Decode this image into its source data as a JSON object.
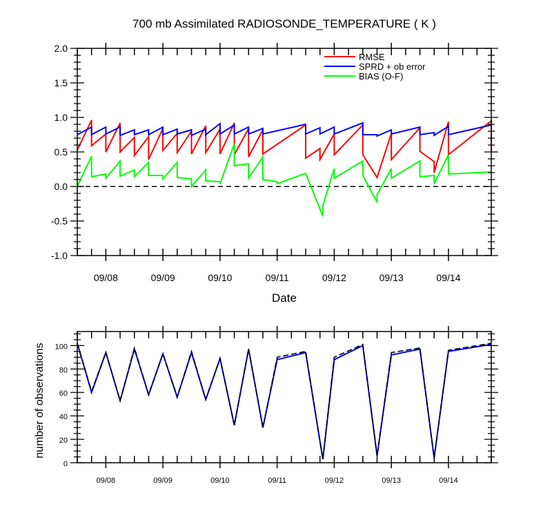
{
  "title": "700 mb Assimilated RADIOSONDE_TEMPERATURE ( K )",
  "colors": {
    "rmse": "#ff0000",
    "sprd": "#0000ff",
    "bias": "#00ff00",
    "axis": "#000000",
    "zero_line": "#000000"
  },
  "chart_data": [
    {
      "type": "line",
      "title": "700 mb Assimilated RADIOSONDE_TEMPERATURE ( K )",
      "xlabel": "Date",
      "ylabel": "",
      "xlim": [
        0.0,
        7.25
      ],
      "ylim": [
        -1.0,
        2.0
      ],
      "x_tick_labels": [
        "09/08",
        "09/09",
        "09/10",
        "09/11",
        "09/12",
        "09/13",
        "09/14"
      ],
      "x_tick_positions": [
        0.5,
        1.5,
        2.5,
        3.5,
        4.5,
        5.5,
        6.5
      ],
      "y_tick_labels": [
        "-1.0",
        "-0.5",
        "0.0",
        "0.5",
        "1.0",
        "1.5",
        "2.0"
      ],
      "y_ticks": [
        -1.0,
        -0.5,
        0.0,
        0.5,
        1.0,
        1.5,
        2.0
      ],
      "zero_line": true,
      "grid": false,
      "legend_position": "top-right",
      "series": [
        {
          "name": "RMSE",
          "color": "#ff0000",
          "points": [
            [
              0.0,
              0.53
            ],
            [
              0.25,
              0.96
            ],
            [
              0.25,
              0.59
            ],
            [
              0.5,
              0.76
            ],
            [
              0.5,
              0.5
            ],
            [
              0.75,
              0.92
            ],
            [
              0.75,
              0.5
            ],
            [
              1.0,
              0.71
            ],
            [
              1.0,
              0.45
            ],
            [
              1.25,
              0.72
            ],
            [
              1.25,
              0.39
            ],
            [
              1.5,
              0.84
            ],
            [
              1.5,
              0.52
            ],
            [
              1.75,
              0.77
            ],
            [
              1.75,
              0.49
            ],
            [
              2.0,
              0.8
            ],
            [
              2.0,
              0.47
            ],
            [
              2.25,
              0.88
            ],
            [
              2.25,
              0.49
            ],
            [
              2.5,
              0.83
            ],
            [
              2.5,
              0.47
            ],
            [
              2.75,
              0.92
            ],
            [
              2.75,
              0.46
            ],
            [
              3.0,
              0.84
            ],
            [
              3.0,
              0.43
            ],
            [
              3.25,
              0.82
            ],
            [
              3.25,
              0.47
            ],
            [
              4.0,
              0.89
            ],
            [
              4.0,
              0.41
            ],
            [
              4.25,
              0.55
            ],
            [
              4.25,
              0.39
            ],
            [
              4.5,
              0.76
            ],
            [
              4.5,
              0.46
            ],
            [
              5.0,
              0.89
            ],
            [
              5.0,
              0.46
            ],
            [
              5.25,
              0.13
            ],
            [
              5.5,
              0.77
            ],
            [
              5.5,
              0.39
            ],
            [
              6.0,
              0.85
            ],
            [
              6.0,
              0.51
            ],
            [
              6.25,
              0.36
            ],
            [
              6.25,
              0.2
            ],
            [
              6.5,
              0.94
            ],
            [
              6.5,
              0.46
            ],
            [
              7.25,
              0.95
            ],
            [
              7.25,
              0.51
            ]
          ]
        },
        {
          "name": "SPRD + ob error",
          "color": "#0000ff",
          "points": [
            [
              0.0,
              0.75
            ],
            [
              0.25,
              0.86
            ],
            [
              0.25,
              0.75
            ],
            [
              0.5,
              0.86
            ],
            [
              0.5,
              0.76
            ],
            [
              0.75,
              0.86
            ],
            [
              0.75,
              0.74
            ],
            [
              1.0,
              0.82
            ],
            [
              1.0,
              0.75
            ],
            [
              1.25,
              0.82
            ],
            [
              1.25,
              0.75
            ],
            [
              1.5,
              0.86
            ],
            [
              1.5,
              0.75
            ],
            [
              1.75,
              0.83
            ],
            [
              1.75,
              0.76
            ],
            [
              2.0,
              0.82
            ],
            [
              2.0,
              0.74
            ],
            [
              2.25,
              0.83
            ],
            [
              2.25,
              0.75
            ],
            [
              2.5,
              0.91
            ],
            [
              2.5,
              0.76
            ],
            [
              2.75,
              0.89
            ],
            [
              2.75,
              0.76
            ],
            [
              3.0,
              0.86
            ],
            [
              3.0,
              0.76
            ],
            [
              3.25,
              0.84
            ],
            [
              3.25,
              0.76
            ],
            [
              4.0,
              0.9
            ],
            [
              4.0,
              0.76
            ],
            [
              4.25,
              0.85
            ],
            [
              4.25,
              0.76
            ],
            [
              4.5,
              0.86
            ],
            [
              4.5,
              0.76
            ],
            [
              5.0,
              0.92
            ],
            [
              5.0,
              0.75
            ],
            [
              5.25,
              0.75
            ],
            [
              5.25,
              0.73
            ],
            [
              5.5,
              0.82
            ],
            [
              5.5,
              0.76
            ],
            [
              6.0,
              0.86
            ],
            [
              6.0,
              0.75
            ],
            [
              6.25,
              0.78
            ],
            [
              6.25,
              0.74
            ],
            [
              6.5,
              0.87
            ],
            [
              6.5,
              0.75
            ],
            [
              7.25,
              0.89
            ]
          ]
        },
        {
          "name": "BIAS (O-F)",
          "color": "#00ff00",
          "points": [
            [
              0.0,
              0.0
            ],
            [
              0.25,
              0.44
            ],
            [
              0.25,
              0.14
            ],
            [
              0.5,
              0.18
            ],
            [
              0.5,
              0.12
            ],
            [
              0.75,
              0.37
            ],
            [
              0.75,
              0.15
            ],
            [
              1.0,
              0.24
            ],
            [
              1.0,
              0.14
            ],
            [
              1.25,
              0.35
            ],
            [
              1.25,
              0.16
            ],
            [
              1.5,
              0.16
            ],
            [
              1.5,
              0.11
            ],
            [
              1.75,
              0.35
            ],
            [
              1.75,
              0.13
            ],
            [
              2.0,
              0.11
            ],
            [
              2.0,
              0.0
            ],
            [
              2.25,
              0.24
            ],
            [
              2.25,
              0.08
            ],
            [
              2.5,
              0.07
            ],
            [
              2.5,
              0.04
            ],
            [
              2.75,
              0.62
            ],
            [
              2.75,
              0.3
            ],
            [
              3.0,
              0.33
            ],
            [
              3.0,
              0.12
            ],
            [
              3.25,
              0.43
            ],
            [
              3.25,
              0.1
            ],
            [
              3.5,
              0.07
            ],
            [
              3.5,
              0.04
            ],
            [
              4.0,
              0.19
            ],
            [
              4.3,
              -0.43
            ],
            [
              4.3,
              -0.28
            ],
            [
              4.5,
              0.26
            ],
            [
              4.5,
              0.12
            ],
            [
              5.0,
              0.37
            ],
            [
              5.0,
              0.16
            ],
            [
              5.25,
              -0.23
            ],
            [
              5.25,
              -0.12
            ],
            [
              5.5,
              0.26
            ],
            [
              5.5,
              0.12
            ],
            [
              6.0,
              0.37
            ],
            [
              6.0,
              0.14
            ],
            [
              6.25,
              0.16
            ],
            [
              6.25,
              0.04
            ],
            [
              6.5,
              0.46
            ],
            [
              6.5,
              0.18
            ],
            [
              7.25,
              0.21
            ]
          ]
        }
      ]
    },
    {
      "type": "line",
      "title": "",
      "xlabel": "",
      "ylabel": "number of observations",
      "xlim": [
        0.0,
        7.25
      ],
      "ylim": [
        0,
        112
      ],
      "x_tick_labels": [
        "09/08",
        "09/09",
        "09/10",
        "09/11",
        "09/12",
        "09/13",
        "09/14"
      ],
      "x_tick_positions": [
        0.5,
        1.5,
        2.5,
        3.5,
        4.5,
        5.5,
        6.5
      ],
      "y_tick_labels": [
        "0",
        "20",
        "40",
        "60",
        "80",
        "100"
      ],
      "y_ticks": [
        0,
        20,
        40,
        60,
        80,
        100
      ],
      "grid": false,
      "series": [
        {
          "name": "",
          "color": "#0000ff",
          "style": "solid",
          "points": [
            [
              0.0,
              102
            ],
            [
              0.25,
              60
            ],
            [
              0.5,
              94
            ],
            [
              0.75,
              53
            ],
            [
              1.0,
              97
            ],
            [
              1.25,
              58
            ],
            [
              1.5,
              93
            ],
            [
              1.75,
              56
            ],
            [
              2.0,
              94
            ],
            [
              2.25,
              54
            ],
            [
              2.5,
              89
            ],
            [
              2.75,
              32
            ],
            [
              3.0,
              97
            ],
            [
              3.25,
              30
            ],
            [
              3.5,
              88
            ],
            [
              4.0,
              94
            ],
            [
              4.3,
              3
            ],
            [
              4.5,
              88
            ],
            [
              5.0,
              100
            ],
            [
              5.25,
              6
            ],
            [
              5.5,
              92
            ],
            [
              6.0,
              97
            ],
            [
              6.25,
              4
            ],
            [
              6.5,
              95
            ],
            [
              7.25,
              101
            ]
          ]
        },
        {
          "name": "",
          "color": "#000000",
          "style": "dashed",
          "points": [
            [
              0.0,
              102
            ],
            [
              0.25,
              61
            ],
            [
              0.5,
              94
            ],
            [
              0.75,
              53
            ],
            [
              1.0,
              98
            ],
            [
              1.25,
              58
            ],
            [
              1.5,
              93
            ],
            [
              1.75,
              56
            ],
            [
              2.0,
              95
            ],
            [
              2.25,
              54
            ],
            [
              2.5,
              89
            ],
            [
              2.75,
              32
            ],
            [
              3.0,
              97
            ],
            [
              3.25,
              30
            ],
            [
              3.5,
              90
            ],
            [
              4.0,
              95
            ],
            [
              4.3,
              3
            ],
            [
              4.5,
              90
            ],
            [
              5.0,
              101
            ],
            [
              5.25,
              6
            ],
            [
              5.5,
              94
            ],
            [
              6.0,
              98
            ],
            [
              6.25,
              4
            ],
            [
              6.5,
              96
            ],
            [
              7.25,
              102
            ]
          ]
        }
      ]
    }
  ]
}
